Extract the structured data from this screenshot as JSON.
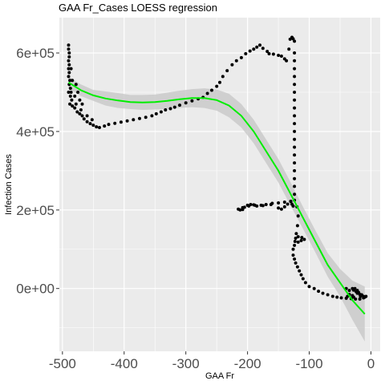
{
  "chart_data": {
    "type": "scatter",
    "title": "GAA Fr_Cases LOESS regression",
    "xlabel": "GAA Fr",
    "ylabel": "Infection Cases",
    "xlim": [
      -505,
      15
    ],
    "ylim": [
      -160000,
      690000
    ],
    "x_ticks": [
      -500,
      -400,
      -300,
      -200,
      -100,
      0
    ],
    "x_tick_labels": [
      "-500",
      "-400",
      "-300",
      "-200",
      "-100",
      "0"
    ],
    "y_ticks": [
      0,
      200000,
      400000,
      600000
    ],
    "y_tick_labels": [
      "0e+00",
      "2e+05",
      "4e+05",
      "6e+05"
    ],
    "grid": true,
    "legend": "none",
    "colors": {
      "panel": "#ebebeb",
      "grid": "#ffffff",
      "points": "#000000",
      "fit": "#00ee00",
      "ribbon": "#c8c8c8"
    },
    "series": [
      {
        "type": "scatter",
        "points": [
          [
            -490,
            620000
          ],
          [
            -490,
            610000
          ],
          [
            -489,
            600000
          ],
          [
            -489,
            590000
          ],
          [
            -490,
            580000
          ],
          [
            -489,
            570000
          ],
          [
            -490,
            560000
          ],
          [
            -489,
            550000
          ],
          [
            -490,
            540000
          ],
          [
            -488,
            530000
          ],
          [
            -489,
            520000
          ],
          [
            -487,
            510000
          ],
          [
            -490,
            500000
          ],
          [
            -487,
            490000
          ],
          [
            -485,
            480000
          ],
          [
            -488,
            470000
          ],
          [
            -484,
            465000
          ],
          [
            -480,
            460000
          ],
          [
            -476,
            450000
          ],
          [
            -472,
            445000
          ],
          [
            -468,
            440000
          ],
          [
            -465,
            432000
          ],
          [
            -460,
            425000
          ],
          [
            -455,
            420000
          ],
          [
            -450,
            416000
          ],
          [
            -445,
            412000
          ],
          [
            -440,
            410000
          ],
          [
            -432,
            414000
          ],
          [
            -425,
            418000
          ],
          [
            -415,
            421000
          ],
          [
            -405,
            424000
          ],
          [
            -395,
            427000
          ],
          [
            -385,
            430000
          ],
          [
            -375,
            433000
          ],
          [
            -365,
            436000
          ],
          [
            -355,
            440000
          ],
          [
            -348,
            445000
          ],
          [
            -340,
            450000
          ],
          [
            -333,
            455000
          ],
          [
            -325,
            458000
          ],
          [
            -318,
            462000
          ],
          [
            -310,
            467000
          ],
          [
            -300,
            473000
          ],
          [
            -290,
            478000
          ],
          [
            -280,
            483000
          ],
          [
            -272,
            487000
          ],
          [
            -265,
            497000
          ],
          [
            -258,
            505000
          ],
          [
            -250,
            515000
          ],
          [
            -245,
            525000
          ],
          [
            -240,
            540000
          ],
          [
            -233,
            555000
          ],
          [
            -225,
            570000
          ],
          [
            -218,
            580000
          ],
          [
            -210,
            588000
          ],
          [
            -203,
            598000
          ],
          [
            -196,
            605000
          ],
          [
            -190,
            610000
          ],
          [
            -185,
            615000
          ],
          [
            -180,
            620000
          ],
          [
            -175,
            612000
          ],
          [
            -168,
            604000
          ],
          [
            -165,
            598000
          ],
          [
            -158,
            597000
          ],
          [
            -150,
            594000
          ],
          [
            -145,
            592000
          ],
          [
            -140,
            585000
          ],
          [
            -137,
            580000
          ],
          [
            -133,
            610000
          ],
          [
            -131,
            635000
          ],
          [
            -128,
            640000
          ],
          [
            -126,
            636000
          ],
          [
            -124,
            630000
          ],
          [
            -124,
            600000
          ],
          [
            -124,
            580000
          ],
          [
            -124,
            560000
          ],
          [
            -124,
            540000
          ],
          [
            -124,
            520000
          ],
          [
            -124,
            500000
          ],
          [
            -124,
            480000
          ],
          [
            -124,
            460000
          ],
          [
            -124,
            440000
          ],
          [
            -124,
            420000
          ],
          [
            -124,
            400000
          ],
          [
            -124,
            380000
          ],
          [
            -124,
            360000
          ],
          [
            -124,
            340000
          ],
          [
            -124,
            320000
          ],
          [
            -124,
            300000
          ],
          [
            -124,
            280000
          ],
          [
            -124,
            260000
          ],
          [
            -124,
            240000
          ],
          [
            -124,
            225000
          ],
          [
            -130,
            222000
          ],
          [
            -140,
            220000
          ],
          [
            -150,
            218000
          ],
          [
            -160,
            217000
          ],
          [
            -170,
            214000
          ],
          [
            -178,
            212000
          ],
          [
            -185,
            210000
          ],
          [
            -190,
            213000
          ],
          [
            -195,
            214000
          ],
          [
            -200,
            212000
          ],
          [
            -205,
            207000
          ],
          [
            -208,
            201000
          ],
          [
            -212,
            200000
          ],
          [
            -215,
            202000
          ],
          [
            -208,
            206000
          ],
          [
            -198,
            210000
          ],
          [
            -188,
            212000
          ],
          [
            -175,
            211000
          ],
          [
            -162,
            214000
          ],
          [
            -150,
            205000
          ],
          [
            -145,
            202000
          ],
          [
            -140,
            208000
          ],
          [
            -135,
            215000
          ],
          [
            -130,
            222000
          ],
          [
            -128,
            215000
          ],
          [
            -126,
            210000
          ],
          [
            -120,
            208000
          ],
          [
            -118,
            185000
          ],
          [
            -119,
            160000
          ],
          [
            -121,
            140000
          ],
          [
            -123,
            120000
          ],
          [
            -126,
            100000
          ],
          [
            -124,
            110000
          ],
          [
            -118,
            118000
          ],
          [
            -113,
            122000
          ],
          [
            -108,
            125000
          ],
          [
            -112,
            130000
          ],
          [
            -118,
            132000
          ],
          [
            -122,
            128000
          ],
          [
            -126,
            85000
          ],
          [
            -124,
            75000
          ],
          [
            -122,
            65000
          ],
          [
            -119,
            55000
          ],
          [
            -116,
            45000
          ],
          [
            -113,
            35000
          ],
          [
            -110,
            25000
          ],
          [
            -106,
            15000
          ],
          [
            -100,
            5000
          ],
          [
            -92,
            0
          ],
          [
            -85,
            -7000
          ],
          [
            -78,
            -12000
          ],
          [
            -70,
            -16000
          ],
          [
            -62,
            -20000
          ],
          [
            -55,
            -22000
          ],
          [
            -48,
            -24000
          ],
          [
            -40,
            -25000
          ],
          [
            -32,
            -26000
          ],
          [
            -25,
            -27000
          ],
          [
            -18,
            -27000
          ],
          [
            -12,
            -24000
          ],
          [
            -40,
            0
          ],
          [
            -35,
            -5000
          ],
          [
            -28,
            -4000
          ],
          [
            -22,
            -5000
          ],
          [
            -20,
            -10000
          ],
          [
            -18,
            -15000
          ],
          [
            -17,
            -20000
          ],
          [
            -15,
            -16000
          ],
          [
            -12,
            -20000
          ],
          [
            -10,
            -22000
          ],
          [
            -8,
            -20000
          ],
          [
            -30,
            0
          ],
          [
            -26,
            0
          ],
          [
            -24,
            -8000
          ],
          [
            -22,
            -12000
          ],
          [
            -35,
            -15000
          ],
          [
            -30,
            -18000
          ],
          [
            -28,
            -22000
          ],
          [
            -38,
            -20000
          ],
          [
            -486,
            560000
          ],
          [
            -484,
            530000
          ],
          [
            -486,
            500000
          ],
          [
            -480,
            490000
          ],
          [
            -478,
            470000
          ],
          [
            -470,
            455000
          ],
          [
            -460,
            440000
          ],
          [
            -452,
            430000
          ],
          [
            -478,
            520000
          ],
          [
            -475,
            500000
          ],
          [
            -472,
            480000
          ],
          [
            -468,
            470000
          ]
        ]
      },
      {
        "type": "line",
        "name": "",
        "x": [
          -490,
          -470,
          -450,
          -430,
          -410,
          -390,
          -370,
          -350,
          -330,
          -310,
          -290,
          -270,
          -250,
          -230,
          -210,
          -190,
          -170,
          -150,
          -130,
          -110,
          -90,
          -70,
          -50,
          -30,
          -10
        ],
        "y": [
          525000,
          505000,
          492000,
          484000,
          479000,
          475000,
          474000,
          475000,
          478000,
          482000,
          485000,
          485000,
          480000,
          466000,
          440000,
          400000,
          350000,
          300000,
          240000,
          180000,
          120000,
          60000,
          15000,
          -30000,
          -65000
        ],
        "lower": [
          510000,
          490000,
          478000,
          466000,
          460000,
          457000,
          455000,
          456000,
          457000,
          460000,
          462000,
          460000,
          453000,
          436000,
          410000,
          370000,
          320000,
          270000,
          210000,
          152000,
          92000,
          30000,
          -20000,
          -80000,
          -135000
        ],
        "upper": [
          540000,
          520000,
          506000,
          502000,
          498000,
          493000,
          493000,
          494000,
          499000,
          504000,
          508000,
          510000,
          507000,
          496000,
          470000,
          430000,
          380000,
          330000,
          270000,
          208000,
          148000,
          90000,
          50000,
          20000,
          5000
        ]
      }
    ]
  }
}
